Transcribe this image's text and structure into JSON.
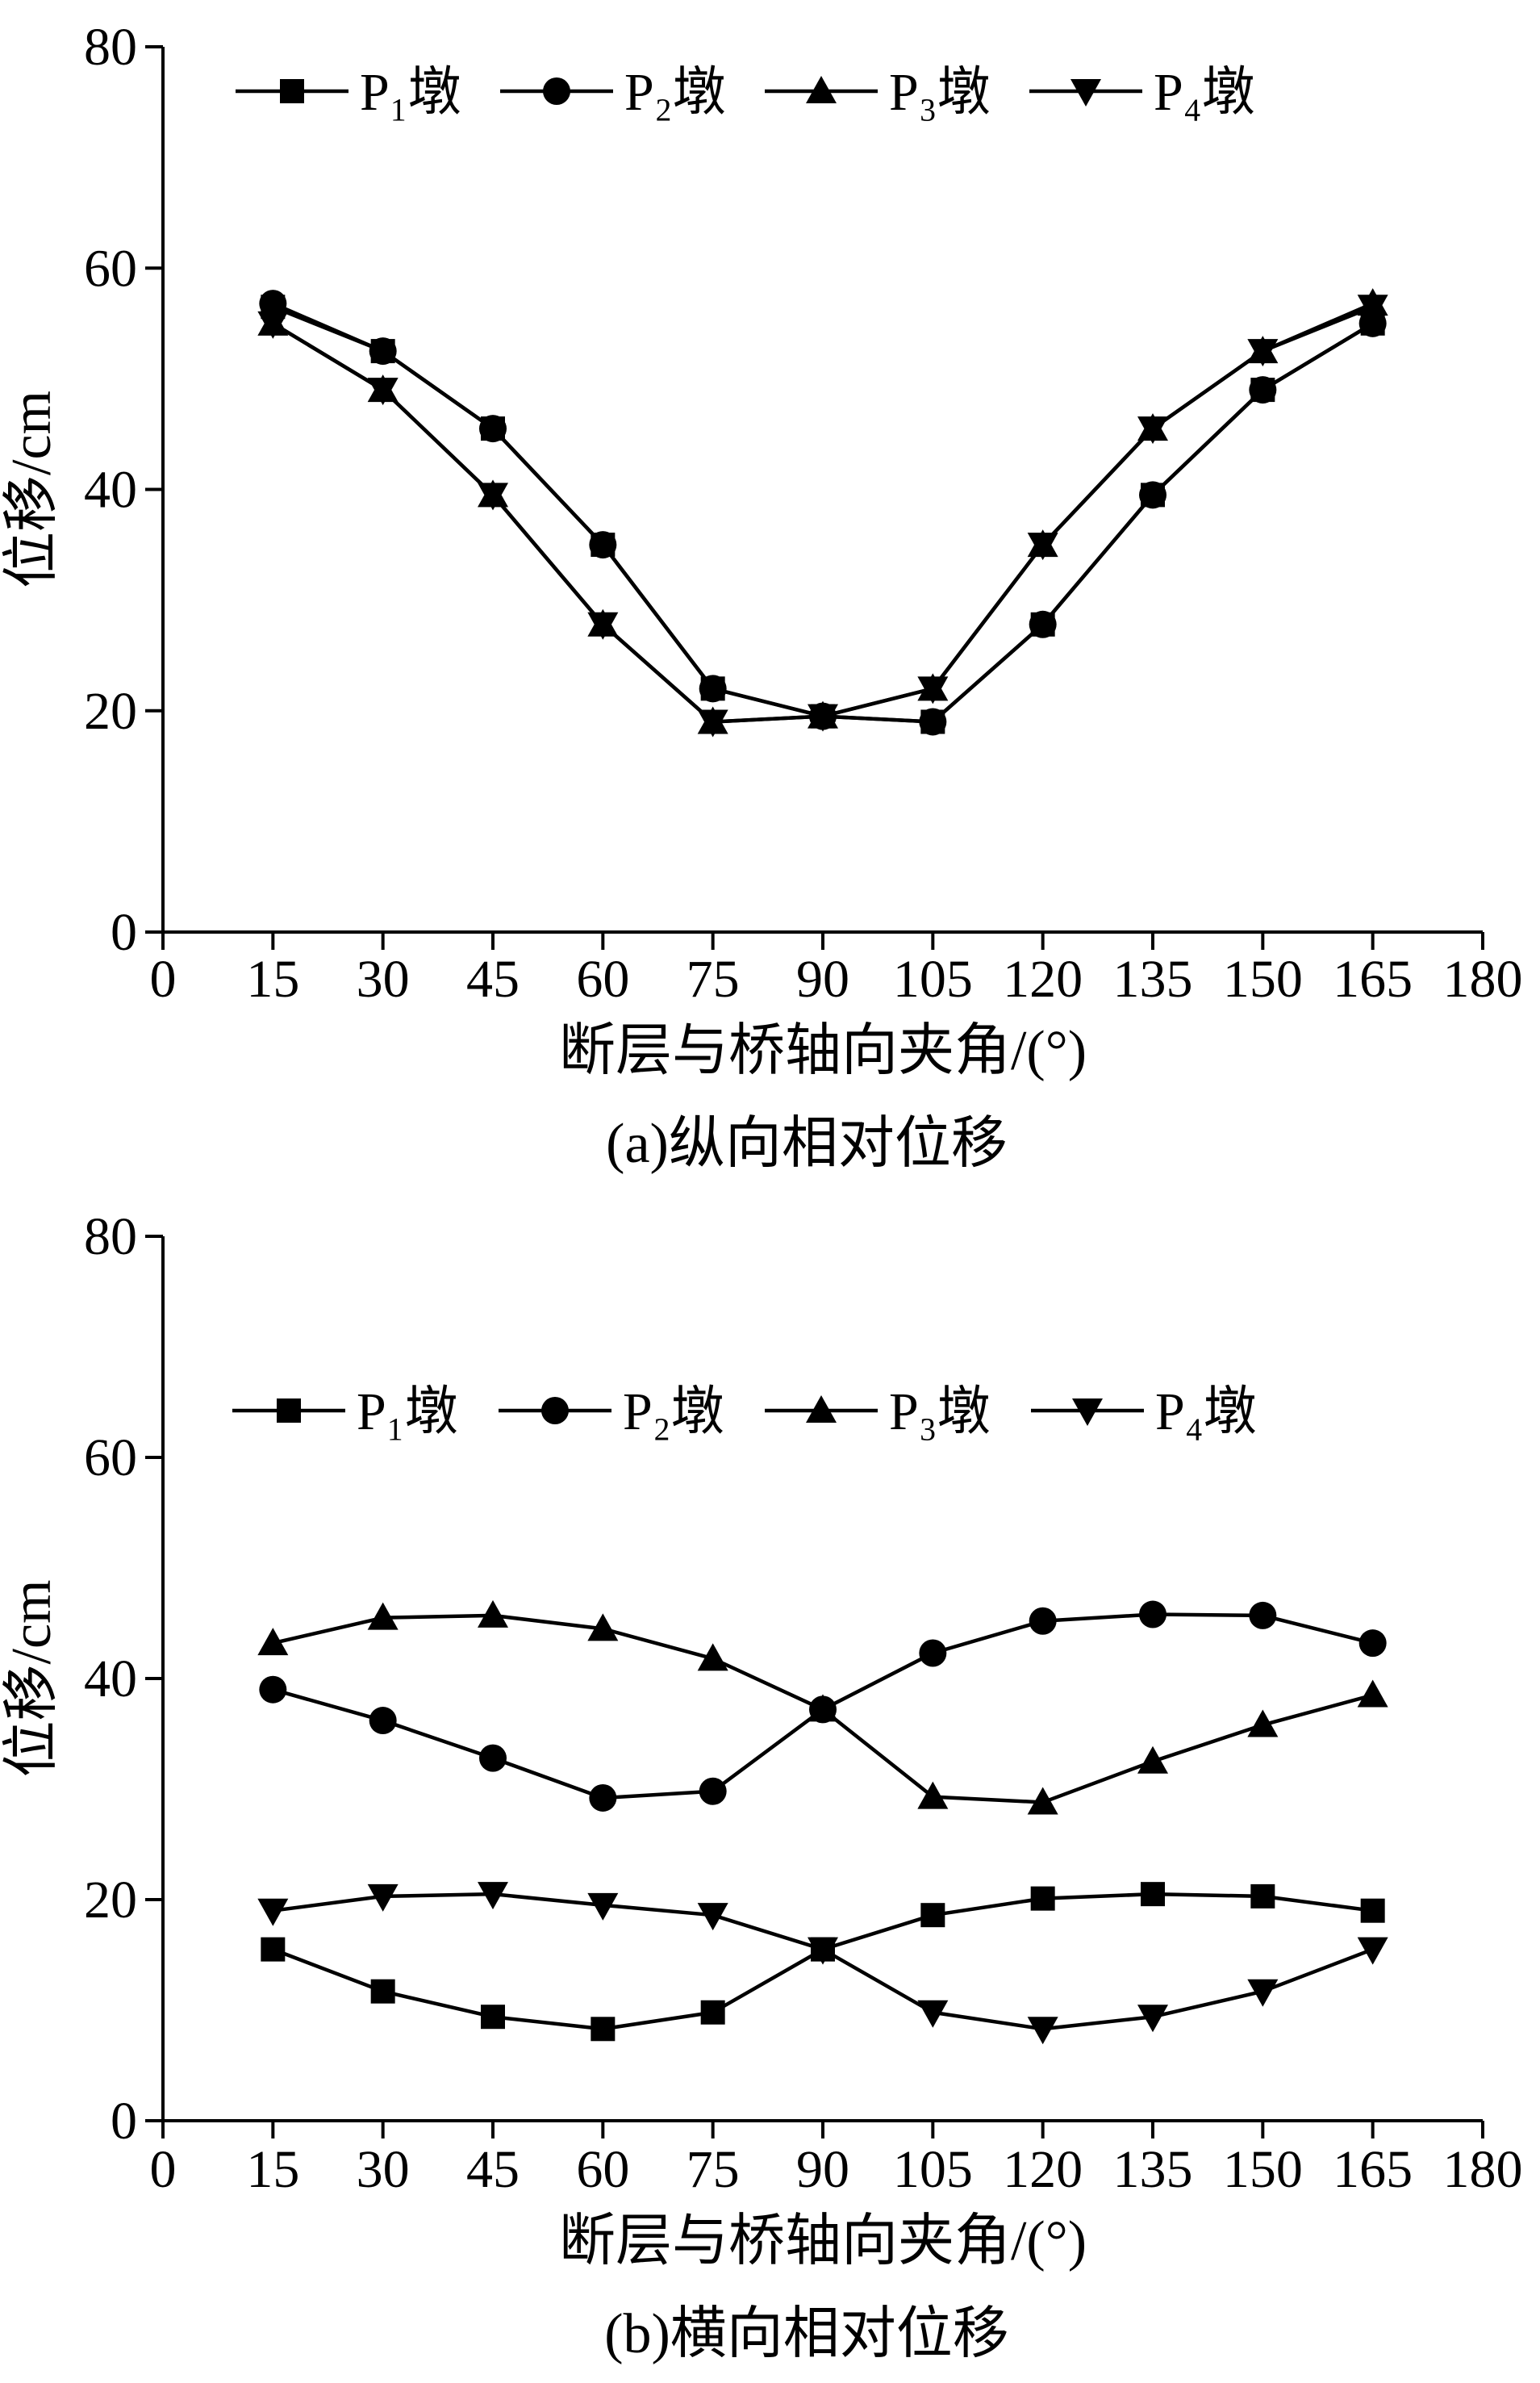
{
  "chart_data": [
    {
      "type": "line",
      "caption": "(a)纵向相对位移",
      "xlabel": "断层与桥轴向夹角/(°)",
      "ylabel": "位移/cm",
      "xlim": [
        0,
        180
      ],
      "ylim": [
        0,
        80
      ],
      "xticks": [
        0,
        15,
        30,
        45,
        60,
        75,
        90,
        105,
        120,
        135,
        150,
        165,
        180
      ],
      "yticks": [
        0,
        20,
        40,
        60,
        80
      ],
      "grid": false,
      "legend_position": "top",
      "x": [
        15,
        30,
        45,
        60,
        75,
        90,
        105,
        120,
        135,
        150,
        165
      ],
      "series": [
        {
          "name": "P₁墩",
          "marker": "square",
          "values": [
            56.5,
            52.5,
            45.5,
            35.0,
            22.0,
            19.5,
            19.0,
            27.8,
            39.5,
            49.0,
            55.0
          ]
        },
        {
          "name": "P₂墩",
          "marker": "circle",
          "values": [
            56.8,
            52.5,
            45.5,
            35.0,
            22.0,
            19.5,
            19.0,
            27.8,
            39.5,
            49.0,
            55.0
          ]
        },
        {
          "name": "P₃墩",
          "marker": "triangle-up",
          "values": [
            55.0,
            49.0,
            39.5,
            27.8,
            19.0,
            19.5,
            22.0,
            35.0,
            45.5,
            52.5,
            56.8
          ]
        },
        {
          "name": "P₄墩",
          "marker": "triangle-down",
          "values": [
            55.0,
            49.0,
            39.5,
            27.8,
            19.0,
            19.5,
            22.0,
            35.0,
            45.5,
            52.5,
            56.5
          ]
        }
      ]
    },
    {
      "type": "line",
      "caption": "(b)横向相对位移",
      "xlabel": "断层与桥轴向夹角/(°)",
      "ylabel": "位移/cm",
      "xlim": [
        0,
        180
      ],
      "ylim": [
        0,
        80
      ],
      "xticks": [
        0,
        15,
        30,
        45,
        60,
        75,
        90,
        105,
        120,
        135,
        150,
        165,
        180
      ],
      "yticks": [
        0,
        20,
        40,
        60,
        80
      ],
      "grid": false,
      "legend_position": "top",
      "x": [
        15,
        30,
        45,
        60,
        75,
        90,
        105,
        120,
        135,
        150,
        165
      ],
      "series": [
        {
          "name": "P₁墩",
          "marker": "square",
          "values": [
            15.5,
            11.7,
            9.4,
            8.3,
            9.8,
            15.5,
            18.6,
            20.1,
            20.5,
            20.3,
            19.0
          ]
        },
        {
          "name": "P₂墩",
          "marker": "circle",
          "values": [
            39.0,
            36.2,
            32.8,
            29.2,
            29.8,
            37.2,
            42.3,
            45.2,
            45.8,
            45.7,
            43.2
          ]
        },
        {
          "name": "P₃墩",
          "marker": "triangle-up",
          "values": [
            43.2,
            45.5,
            45.7,
            44.5,
            41.8,
            37.2,
            29.3,
            28.8,
            32.5,
            35.8,
            38.5
          ]
        },
        {
          "name": "P₄墩",
          "marker": "triangle-down",
          "values": [
            19.0,
            20.3,
            20.5,
            19.5,
            18.6,
            15.5,
            9.8,
            8.3,
            9.4,
            11.7,
            15.5
          ]
        }
      ]
    }
  ]
}
